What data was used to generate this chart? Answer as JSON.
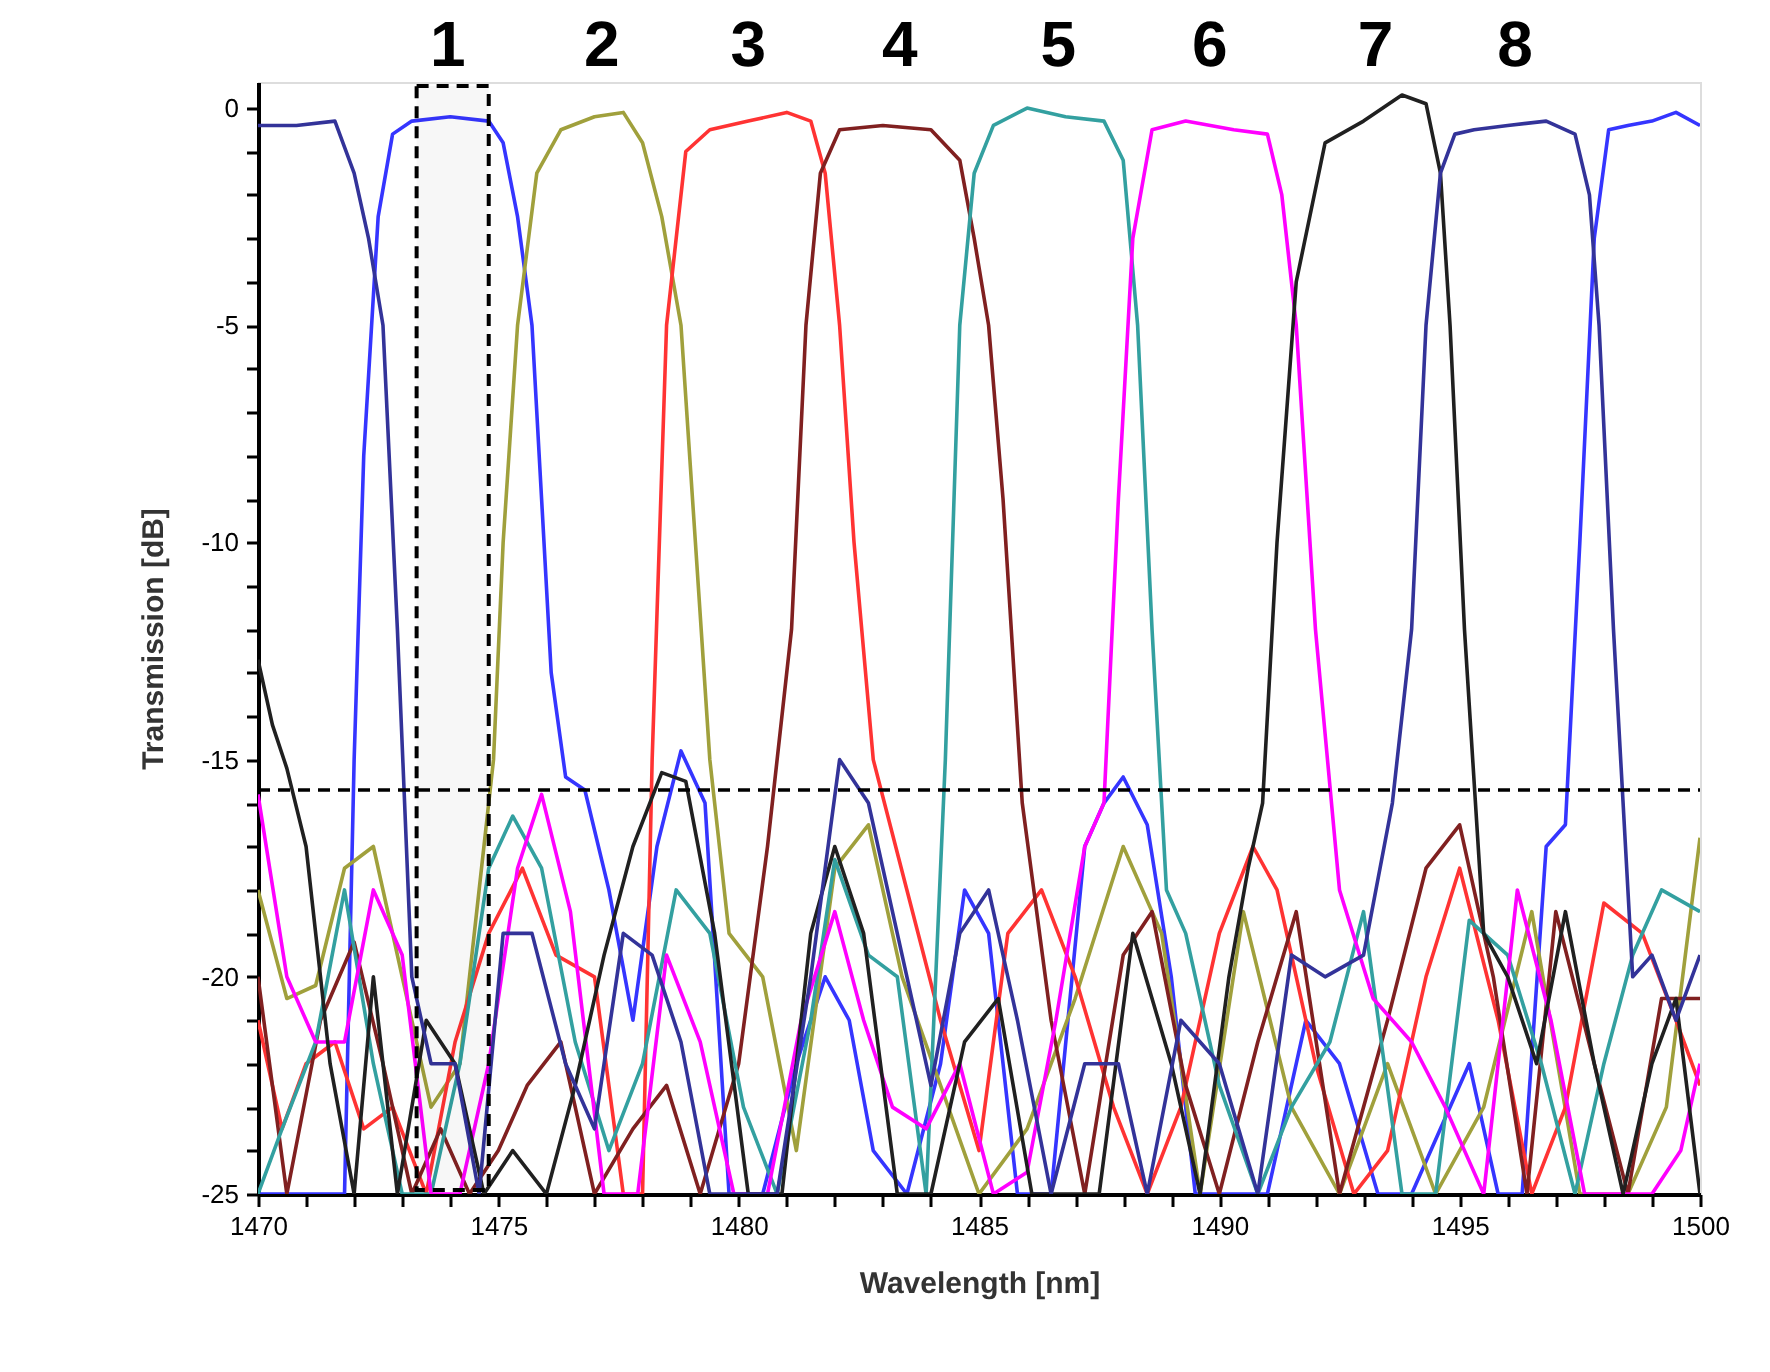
{
  "chart_data": {
    "type": "line",
    "xlabel": "Wavelength [nm]",
    "ylabel": "Transmission [dB]",
    "xlim": [
      1470,
      1500
    ],
    "ylim": [
      -25,
      0.6
    ],
    "xticks": [
      1470,
      {
        "value": 1471,
        "label": null
      },
      {
        "value": 1472,
        "label": null
      },
      {
        "value": 1473,
        "label": null
      },
      {
        "value": 1474,
        "label": null
      },
      1475,
      {
        "value": 1476,
        "label": null
      },
      {
        "value": 1477,
        "label": null
      },
      {
        "value": 1478,
        "label": null
      },
      {
        "value": 1479,
        "label": null
      },
      1480,
      {
        "value": 1481,
        "label": null
      },
      {
        "value": 1482,
        "label": null
      },
      {
        "value": 1483,
        "label": null
      },
      {
        "value": 1484,
        "label": null
      },
      1485,
      {
        "value": 1486,
        "label": null
      },
      {
        "value": 1487,
        "label": null
      },
      {
        "value": 1488,
        "label": null
      },
      {
        "value": 1489,
        "label": null
      },
      1490,
      {
        "value": 1491,
        "label": null
      },
      {
        "value": 1492,
        "label": null
      },
      {
        "value": 1493,
        "label": null
      },
      {
        "value": 1494,
        "label": null
      },
      1495,
      {
        "value": 1496,
        "label": null
      },
      {
        "value": 1497,
        "label": null
      },
      {
        "value": 1498,
        "label": null
      },
      {
        "value": 1499,
        "label": null
      },
      1500
    ],
    "yticks": [
      -25,
      {
        "value": -24,
        "label": null
      },
      {
        "value": -23,
        "label": null
      },
      {
        "value": -22,
        "label": null
      },
      {
        "value": -21,
        "label": null
      },
      -20,
      {
        "value": -19,
        "label": null
      },
      {
        "value": -18,
        "label": null
      },
      {
        "value": -17,
        "label": null
      },
      {
        "value": -16,
        "label": null
      },
      -15,
      {
        "value": -14,
        "label": null
      },
      {
        "value": -13,
        "label": null
      },
      {
        "value": -12,
        "label": null
      },
      {
        "value": -11,
        "label": null
      },
      -10,
      {
        "value": -9,
        "label": null
      },
      {
        "value": -8,
        "label": null
      },
      {
        "value": -7,
        "label": null
      },
      {
        "value": -6,
        "label": null
      },
      -5,
      {
        "value": -4,
        "label": null
      },
      {
        "value": -3,
        "label": null
      },
      {
        "value": -2,
        "label": null
      },
      {
        "value": -1,
        "label": null
      },
      0
    ],
    "series": [
      {
        "color": "#3535ff",
        "x": [
          1470,
          1470.5,
          1471,
          1471.5,
          1471.8,
          1472.0,
          1472.2,
          1472.5,
          1472.8,
          1473.2,
          1474,
          1474.8,
          1475.1,
          1475.4,
          1475.7,
          1475.9,
          1476.1,
          1476.4,
          1476.8,
          1477.3,
          1477.8,
          1478.3,
          1478.8,
          1479.3,
          1479.8,
          1480.5,
          1481.2,
          1481.8,
          1482.3,
          1482.8,
          1483.5,
          1484.2,
          1484.7,
          1485.2,
          1485.8,
          1486.5,
          1487.2,
          1487.6,
          1488.0,
          1488.5,
          1489,
          1489.5,
          1490.2,
          1491,
          1491.8,
          1492.5,
          1493.3,
          1494,
          1494.6,
          1495.2,
          1495.8,
          1496.3,
          1496.8,
          1497.2,
          1497.5,
          1497.8,
          1498.1,
          1498.5,
          1499,
          1499.5,
          1500
        ],
        "values": [
          -25,
          -25,
          -25,
          -25,
          -25,
          -15,
          -8,
          -2.5,
          -0.6,
          -0.3,
          -0.2,
          -0.3,
          -0.8,
          -2.5,
          -5,
          -9,
          -13,
          -15.4,
          -15.7,
          -18,
          -21,
          -17,
          -14.8,
          -16,
          -25,
          -25,
          -22,
          -20,
          -21,
          -24,
          -25,
          -22,
          -18,
          -19,
          -25,
          -25,
          -17,
          -16,
          -15.4,
          -16.5,
          -20,
          -25,
          -25,
          -25,
          -21,
          -22,
          -25,
          -25,
          -23.5,
          -22,
          -25,
          -25,
          -17,
          -16.5,
          -10,
          -3,
          -0.5,
          -0.4,
          -0.3,
          -0.1,
          -0.4
        ]
      },
      {
        "color": "#a0a03c",
        "x": [
          1470,
          1470.6,
          1471.2,
          1471.8,
          1472.4,
          1473,
          1473.6,
          1474.2,
          1474.6,
          1474.9,
          1475.1,
          1475.4,
          1475.8,
          1476.3,
          1477,
          1477.6,
          1478.0,
          1478.4,
          1478.8,
          1479.1,
          1479.4,
          1479.8,
          1480.5,
          1481.2,
          1482,
          1482.7,
          1483.4,
          1484.2,
          1485,
          1486,
          1487,
          1488,
          1488.8,
          1489.6,
          1490.5,
          1491.5,
          1492.5,
          1493.5,
          1494.5,
          1495.5,
          1496.5,
          1497.5,
          1498.5,
          1499.3,
          1500
        ],
        "values": [
          -18,
          -20.5,
          -20.2,
          -17.5,
          -17,
          -20,
          -23,
          -22,
          -18,
          -15,
          -10,
          -5,
          -1.5,
          -0.5,
          -0.2,
          -0.1,
          -0.8,
          -2.5,
          -5,
          -10,
          -15,
          -19,
          -20,
          -24,
          -17.5,
          -16.5,
          -20,
          -22.5,
          -25,
          -23.5,
          -20.5,
          -17,
          -19,
          -25,
          -18.5,
          -23,
          -25,
          -22,
          -25,
          -23,
          -18.5,
          -25,
          -25,
          -23,
          -16.8
        ]
      },
      {
        "color": "#ff3333",
        "x": [
          1470,
          1470.5,
          1471,
          1471.6,
          1472.2,
          1472.8,
          1473.5,
          1474.1,
          1474.8,
          1475.5,
          1476.2,
          1477,
          1477.6,
          1478.0,
          1478.2,
          1478.5,
          1478.9,
          1479.4,
          1480.2,
          1481,
          1481.5,
          1481.8,
          1482.1,
          1482.4,
          1482.8,
          1483.5,
          1484.2,
          1485,
          1485.6,
          1486.3,
          1487,
          1487.8,
          1488.5,
          1489.2,
          1490,
          1490.7,
          1491.2,
          1492,
          1492.8,
          1493.5,
          1494.3,
          1495,
          1495.8,
          1496.5,
          1497.2,
          1498,
          1498.8,
          1499.5,
          1500
        ],
        "values": [
          -21,
          -23.5,
          -22,
          -21.5,
          -23.5,
          -23,
          -25,
          -21.5,
          -19,
          -17.5,
          -19.5,
          -20,
          -25,
          -25,
          -15,
          -5,
          -1,
          -0.5,
          -0.3,
          -0.1,
          -0.3,
          -1.5,
          -5,
          -10,
          -15,
          -18,
          -21,
          -24,
          -19,
          -18,
          -20,
          -23,
          -25,
          -23,
          -19,
          -17,
          -18,
          -22,
          -25,
          -24,
          -20,
          -17.5,
          -21,
          -25,
          -23,
          -18.3,
          -19,
          -21,
          -22.5
        ]
      },
      {
        "color": "#802020",
        "x": [
          1470,
          1470.6,
          1471.3,
          1472,
          1472.6,
          1473.2,
          1473.8,
          1474.4,
          1475,
          1475.6,
          1476.3,
          1477,
          1477.8,
          1478.5,
          1479.2,
          1480,
          1480.6,
          1481.1,
          1481.4,
          1481.7,
          1482.1,
          1483,
          1484,
          1484.6,
          1484.9,
          1485.2,
          1485.5,
          1485.9,
          1486.5,
          1487.2,
          1488,
          1488.6,
          1489.3,
          1490,
          1490.8,
          1491.6,
          1492.5,
          1493.5,
          1494.3,
          1495,
          1495.7,
          1496.4,
          1497,
          1497.8,
          1498.5,
          1499.2,
          1500
        ],
        "values": [
          -20,
          -25,
          -21,
          -19.2,
          -22,
          -25,
          -23.5,
          -25,
          -24,
          -22.5,
          -21.5,
          -25,
          -23.5,
          -22.5,
          -25,
          -22,
          -17,
          -12,
          -5,
          -1.5,
          -0.5,
          -0.4,
          -0.5,
          -1.2,
          -3,
          -5,
          -9,
          -16,
          -21,
          -25,
          -19.5,
          -18.5,
          -22.5,
          -25,
          -21.5,
          -18.5,
          -25,
          -21,
          -17.5,
          -16.5,
          -20,
          -25,
          -18.5,
          -22,
          -25,
          -20.5,
          -20.5
        ]
      },
      {
        "color": "#33a0a0",
        "x": [
          1470,
          1470.5,
          1471.2,
          1471.8,
          1472.4,
          1473,
          1473.6,
          1474.2,
          1474.8,
          1475.3,
          1475.9,
          1476.6,
          1477.3,
          1478,
          1478.7,
          1479.4,
          1480.1,
          1480.8,
          1481.5,
          1482,
          1482.7,
          1483.3,
          1483.9,
          1484.3,
          1484.6,
          1484.9,
          1485.3,
          1486,
          1486.8,
          1487.6,
          1488,
          1488.3,
          1488.6,
          1488.9,
          1489.3,
          1490,
          1490.8,
          1491.5,
          1492.3,
          1493,
          1493.8,
          1494.5,
          1495.2,
          1496,
          1496.7,
          1497.4,
          1498,
          1498.6,
          1499.2,
          1500
        ],
        "values": [
          -25,
          -23.5,
          -21.5,
          -18,
          -22,
          -25,
          -25,
          -22,
          -17.5,
          -16.3,
          -17.5,
          -21.5,
          -24,
          -22,
          -18,
          -19,
          -23,
          -25,
          -21,
          -17.3,
          -19.5,
          -20,
          -25,
          -15,
          -5,
          -1.5,
          -0.4,
          0,
          -0.2,
          -0.3,
          -1.2,
          -5,
          -12,
          -18,
          -19,
          -22.5,
          -25,
          -23,
          -21.5,
          -18.5,
          -25,
          -25,
          -18.7,
          -19.5,
          -22,
          -25,
          -22,
          -19.5,
          -18,
          -18.5
        ]
      },
      {
        "color": "#ff00ff",
        "x": [
          1470,
          1470.6,
          1471.2,
          1471.8,
          1472.4,
          1473,
          1473.6,
          1474.2,
          1474.8,
          1475.4,
          1475.9,
          1476.5,
          1477.2,
          1477.9,
          1478.5,
          1479.2,
          1479.9,
          1480.6,
          1481.3,
          1482,
          1482.6,
          1483.2,
          1483.9,
          1484.6,
          1485.3,
          1486,
          1486.6,
          1487.2,
          1487.6,
          1487.9,
          1488.2,
          1488.6,
          1489.3,
          1490.3,
          1491,
          1491.3,
          1491.6,
          1492,
          1492.5,
          1493.2,
          1494,
          1494.7,
          1495.5,
          1496.2,
          1496.9,
          1497.6,
          1498.3,
          1499,
          1499.6,
          1500
        ],
        "values": [
          -15.8,
          -20,
          -21.5,
          -21.5,
          -18,
          -19.5,
          -25,
          -25,
          -22,
          -17.5,
          -15.8,
          -18.5,
          -25,
          -25,
          -19.5,
          -21.5,
          -25,
          -25,
          -21,
          -18.5,
          -21,
          -23,
          -23.5,
          -22,
          -25,
          -24.5,
          -21,
          -17,
          -16,
          -9,
          -3,
          -0.5,
          -0.3,
          -0.5,
          -0.6,
          -2,
          -5,
          -12,
          -18,
          -20.5,
          -21.5,
          -23,
          -25,
          -18,
          -21,
          -25,
          -25,
          -25,
          -24,
          -22
        ]
      },
      {
        "color": "#202020",
        "x": [
          1470,
          1470.3,
          1470.6,
          1471,
          1471.5,
          1472,
          1472.4,
          1472.9,
          1473.5,
          1474.1,
          1474.7,
          1475.3,
          1476,
          1476.6,
          1477.2,
          1477.8,
          1478.4,
          1478.9,
          1479.5,
          1480.2,
          1480.9,
          1481.5,
          1482,
          1482.6,
          1483.3,
          1484,
          1484.7,
          1485.4,
          1486.1,
          1486.8,
          1487.5,
          1488.2,
          1489,
          1489.6,
          1490.2,
          1490.6,
          1490.9,
          1491.2,
          1491.6,
          1492.2,
          1493,
          1493.8,
          1494.3,
          1494.6,
          1494.8,
          1495.1,
          1495.5,
          1496,
          1496.6,
          1497.2,
          1497.8,
          1498.4,
          1499,
          1499.5,
          1500
        ],
        "values": [
          -12.7,
          -14.2,
          -15.2,
          -17,
          -22,
          -25,
          -20,
          -25,
          -21,
          -22,
          -25,
          -24,
          -25,
          -22.5,
          -19.5,
          -17,
          -15.3,
          -15.5,
          -19,
          -25,
          -25,
          -19,
          -17,
          -19,
          -25,
          -25,
          -21.5,
          -20.5,
          -25,
          -25,
          -25,
          -19,
          -22,
          -25,
          -20,
          -17.5,
          -16,
          -10,
          -4,
          -0.8,
          -0.3,
          0.3,
          0.1,
          -1.5,
          -5,
          -12,
          -19,
          -20,
          -22,
          -18.5,
          -22,
          -25,
          -22,
          -20.5,
          -25
        ]
      },
      {
        "color": "#333399",
        "x": [
          1470,
          1470.8,
          1471.6,
          1472.0,
          1472.3,
          1472.6,
          1472.9,
          1473.2,
          1473.6,
          1474.1,
          1474.6,
          1475.1,
          1475.7,
          1476.4,
          1477,
          1477.6,
          1478.2,
          1478.8,
          1479.4,
          1480.1,
          1480.8,
          1481.5,
          1482.1,
          1482.7,
          1483.3,
          1484,
          1484.6,
          1485.2,
          1485.8,
          1486.5,
          1487.2,
          1487.9,
          1488.5,
          1489.2,
          1490,
          1490.8,
          1491.5,
          1492.2,
          1493,
          1493.6,
          1494,
          1494.3,
          1494.6,
          1494.9,
          1495.3,
          1496,
          1496.8,
          1497.4,
          1497.7,
          1497.9,
          1498.2,
          1498.6,
          1499,
          1499.5,
          1500
        ],
        "values": [
          -0.4,
          -0.4,
          -0.3,
          -1.5,
          -3,
          -5,
          -12,
          -20,
          -22,
          -22,
          -25,
          -19,
          -19,
          -22,
          -23.5,
          -19,
          -19.5,
          -21.5,
          -25,
          -25,
          -25,
          -20,
          -15,
          -16,
          -19,
          -22.5,
          -19,
          -18,
          -21,
          -25,
          -22,
          -22,
          -25,
          -21,
          -22,
          -25,
          -19.5,
          -20,
          -19.5,
          -16,
          -12,
          -5,
          -1.5,
          -0.6,
          -0.5,
          -0.4,
          -0.3,
          -0.6,
          -2,
          -5,
          -12,
          -20,
          -19.5,
          -21,
          -19.5
        ]
      }
    ],
    "ref_lines": [
      {
        "axis": "y",
        "value": -15.7,
        "label": null,
        "color": "#000000",
        "line_style": "dashed"
      }
    ],
    "bands": [
      {
        "axis": "x",
        "from": 1473.3,
        "to": 1474.8,
        "label": null,
        "color": "#000000"
      }
    ],
    "annotations": [
      "1",
      "2",
      "3",
      "4",
      "5",
      "6",
      "7",
      "8"
    ]
  }
}
